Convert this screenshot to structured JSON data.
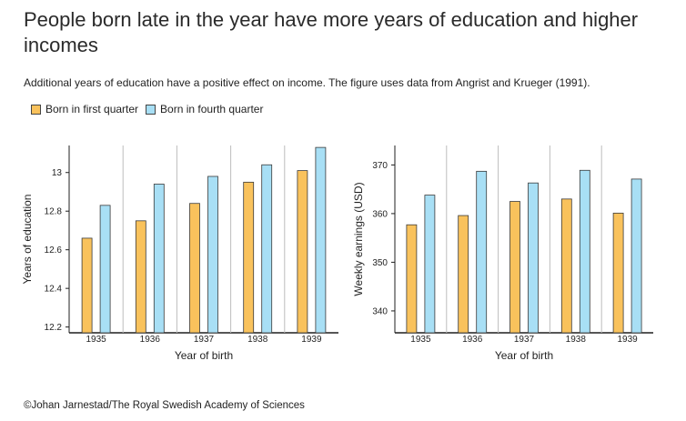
{
  "title": "People born late in the year have more years of education and higher incomes",
  "subtitle": "Additional years of education have a positive effect on income. The figure uses data from Angrist and Krueger (1991).",
  "credit": "©Johan Jarnestad/The Royal Swedish Academy of Sciences",
  "colors": {
    "first_quarter": "#f9c25c",
    "fourth_quarter": "#a8dff5",
    "bar_outline": "#3a3a3a",
    "separator": "#bdbdbd"
  },
  "legend": [
    {
      "label": "Born in first quarter",
      "color_key": "first_quarter"
    },
    {
      "label": "Born in fourth quarter",
      "color_key": "fourth_quarter"
    }
  ],
  "chart_data": [
    {
      "type": "bar",
      "categories": [
        "1935",
        "1936",
        "1937",
        "1938",
        "1939"
      ],
      "series": [
        {
          "name": "Born in first quarter",
          "values": [
            12.66,
            12.75,
            12.84,
            12.95,
            13.01
          ]
        },
        {
          "name": "Born in fourth quarter",
          "values": [
            12.83,
            12.94,
            12.98,
            13.04,
            13.13
          ]
        }
      ],
      "xlabel": "Year of birth",
      "ylabel": "Years of education",
      "yticks": [
        12.2,
        12.4,
        12.6,
        12.8,
        13
      ],
      "ytick_labels": [
        "12.2",
        "12.4",
        "12.6",
        "12.8",
        "13"
      ],
      "ylim": [
        12.17,
        13.14
      ]
    },
    {
      "type": "bar",
      "categories": [
        "1935",
        "1936",
        "1937",
        "1938",
        "1939"
      ],
      "series": [
        {
          "name": "Born in first quarter",
          "values": [
            357.7,
            359.6,
            362.5,
            363.0,
            360.1
          ]
        },
        {
          "name": "Born in fourth quarter",
          "values": [
            363.8,
            368.7,
            366.3,
            368.9,
            367.1
          ]
        }
      ],
      "xlabel": "Year of birth",
      "ylabel": "Weekly earnings (USD)",
      "yticks": [
        340,
        350,
        360,
        370
      ],
      "ytick_labels": [
        "340",
        "350",
        "360",
        "370"
      ],
      "ylim": [
        335.5,
        374
      ]
    }
  ]
}
